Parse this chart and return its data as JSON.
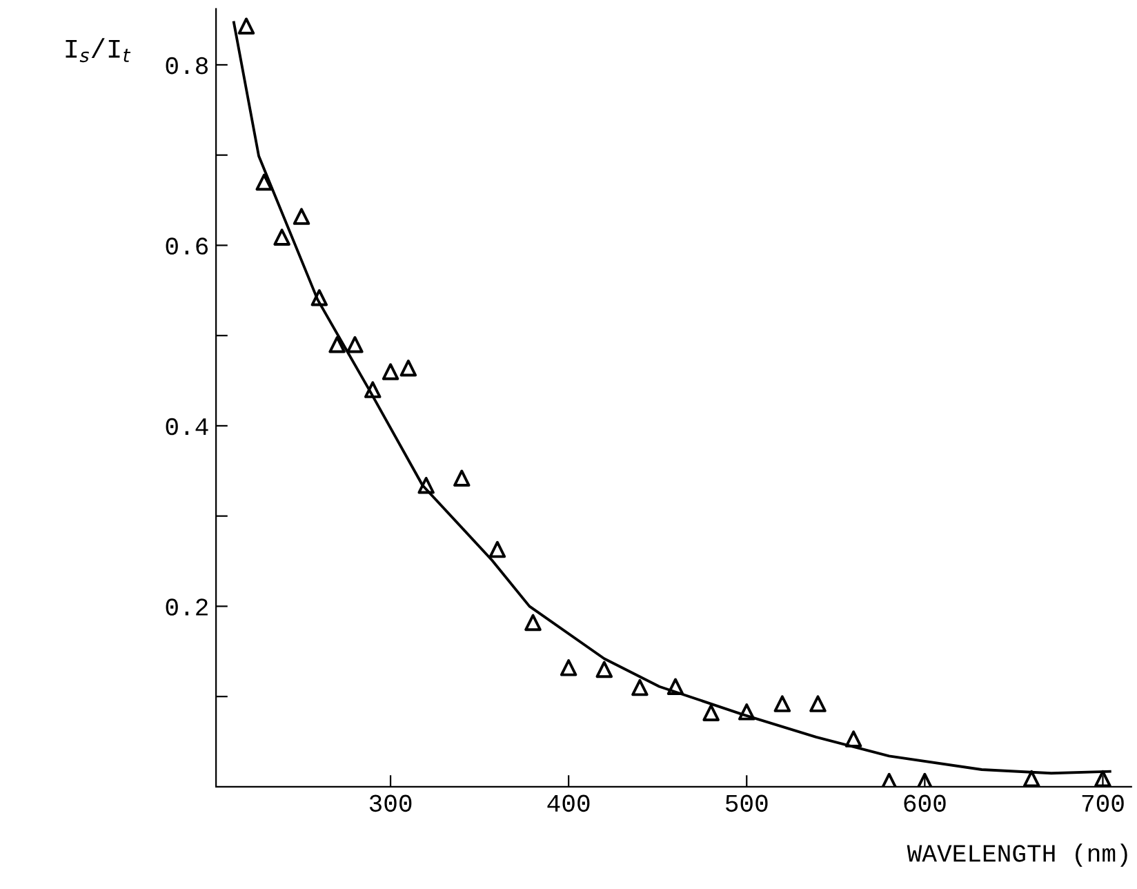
{
  "chart_data": {
    "type": "scatter",
    "xlabel": "WAVELENGTH (nm)",
    "ylabel": "I$_{s}$/I$_{t}$",
    "xlim": [
      202,
      716
    ],
    "xticks": [
      300,
      400,
      500,
      600,
      700
    ],
    "ylim": [
      0,
      0.862
    ],
    "yticks": [
      {
        "value": 0.1,
        "label": null
      },
      0.2,
      {
        "value": 0.3,
        "label": null
      },
      0.4,
      {
        "value": 0.5,
        "label": null
      },
      0.6,
      {
        "value": 0.7,
        "label": null
      },
      0.8
    ],
    "grid": false,
    "legend": false,
    "series": [
      {
        "marker": "triangle",
        "color": "#000000",
        "x": [
          219,
          229,
          239,
          250,
          260,
          270,
          280,
          290,
          300,
          310,
          320,
          340,
          360,
          380,
          400,
          420,
          440,
          460,
          480,
          500,
          520,
          540,
          560,
          580,
          600,
          660,
          700
        ],
        "values": [
          0.843,
          0.67,
          0.609,
          0.632,
          0.542,
          0.49,
          0.49,
          0.44,
          0.46,
          0.464,
          0.334,
          0.342,
          0.263,
          0.182,
          0.132,
          0.13,
          0.11,
          0.111,
          0.082,
          0.083,
          0.092,
          0.092,
          0.053,
          0.006,
          0.006,
          0.009,
          0.009
        ]
      },
      {
        "type": "line",
        "marker": "none",
        "line_style": "solid",
        "color": "#000000",
        "x": [
          212,
          226,
          259,
          288,
          318,
          357,
          378,
          420,
          451,
          498,
          539,
          580,
          632,
          671,
          704
        ],
        "values": [
          0.847,
          0.699,
          0.54,
          0.44,
          0.334,
          0.251,
          0.2,
          0.142,
          0.111,
          0.08,
          0.055,
          0.034,
          0.019,
          0.015,
          0.017
        ]
      }
    ]
  }
}
